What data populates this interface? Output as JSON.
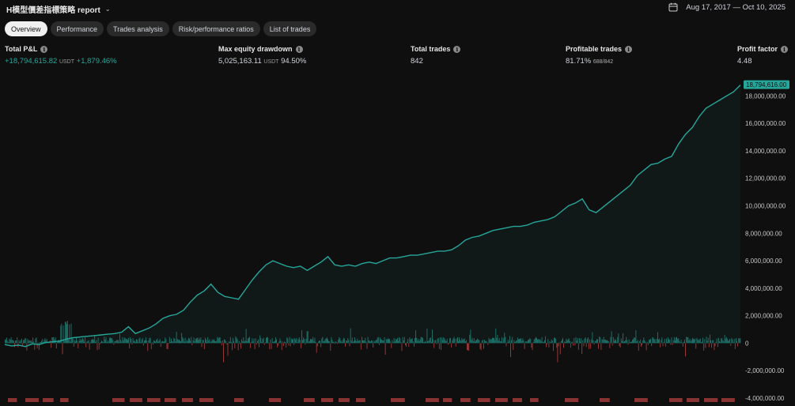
{
  "header": {
    "title": "H模型價差指標策略 report",
    "date_range": "Aug 17, 2017 — Oct 10, 2025"
  },
  "tabs": [
    "Overview",
    "Performance",
    "Trades analysis",
    "Risk/performance ratios",
    "List of trades"
  ],
  "active_tab": "Overview",
  "metrics": {
    "total_pnl": {
      "label": "Total P&L",
      "value": "+18,794,615.82",
      "unit": "USDT",
      "extra": "+1,879.46%"
    },
    "max_dd": {
      "label": "Max equity drawdown",
      "value": "5,025,163.11",
      "unit": "USDT",
      "extra": "94.50%"
    },
    "total_trades": {
      "label": "Total trades",
      "value": "842"
    },
    "profitable": {
      "label": "Profitable trades",
      "value": "81.71%",
      "extra": "688/842"
    },
    "profit_factor": {
      "label": "Profit factor",
      "value": "4.48"
    }
  },
  "colors": {
    "equity": "#26a69a",
    "profit_bar": "#26a69a",
    "loss_bar": "#ef5350",
    "background": "#0f0f0f"
  },
  "chart_data": {
    "type": "line",
    "title": "",
    "last_value_label": "18,794,616.00",
    "y_ticks": [
      18000000,
      16000000,
      14000000,
      12000000,
      10000000,
      8000000,
      6000000,
      4000000,
      2000000,
      0,
      -2000000,
      -4000000
    ],
    "y_tick_labels": [
      "18,000,000.00",
      "16,000,000.00",
      "14,000,000.00",
      "12,000,000.00",
      "10,000,000.00",
      "8,000,000.00",
      "6,000,000.00",
      "4,000,000.00",
      "2,000,000.00",
      "0",
      "-2,000,000.00",
      "-4,000,000.00"
    ],
    "ylim": [
      -4000000,
      19000000
    ],
    "series": [
      {
        "values": [
          -100000,
          -200000,
          -150000,
          -250000,
          -50000,
          -100000,
          50000,
          100000,
          150000,
          300000,
          400000,
          450000,
          500000,
          550000,
          600000,
          650000,
          700000,
          800000,
          1200000,
          700000,
          900000,
          1100000,
          1400000,
          1800000,
          2000000,
          2100000,
          2400000,
          3000000,
          3500000,
          3800000,
          4300000,
          3700000,
          3400000,
          3300000,
          3200000,
          3900000,
          4600000,
          5200000,
          5700000,
          6000000,
          5800000,
          5600000,
          5500000,
          5600000,
          5300000,
          5600000,
          5900000,
          6300000,
          5700000,
          5600000,
          5700000,
          5600000,
          5800000,
          5900000,
          5800000,
          6000000,
          6200000,
          6200000,
          6300000,
          6400000,
          6400000,
          6500000,
          6600000,
          6700000,
          6700000,
          6800000,
          7100000,
          7500000,
          7700000,
          7800000,
          8000000,
          8200000,
          8300000,
          8400000,
          8500000,
          8500000,
          8600000,
          8800000,
          8900000,
          9000000,
          9200000,
          9600000,
          10000000,
          10200000,
          10500000,
          9700000,
          9500000,
          9900000,
          10300000,
          10700000,
          11100000,
          11500000,
          12200000,
          12600000,
          13000000,
          13100000,
          13400000,
          13600000,
          14500000,
          15200000,
          15700000,
          16500000,
          17100000,
          17400000,
          17700000,
          18000000,
          18300000,
          18794616
        ]
      }
    ]
  }
}
